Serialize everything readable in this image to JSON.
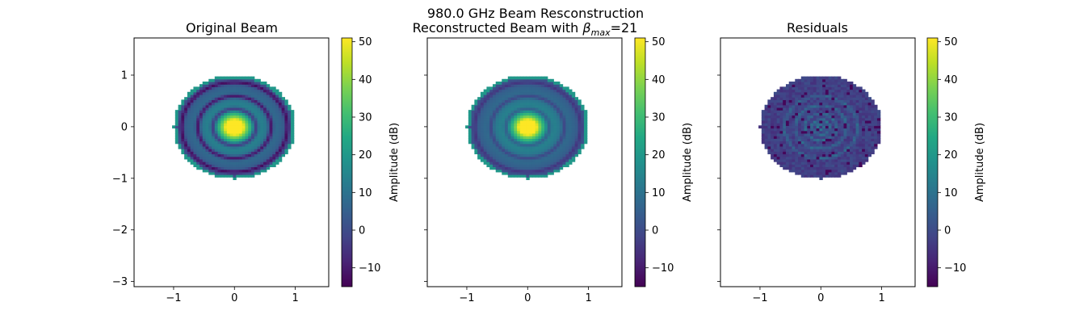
{
  "suptitle": "980.0 GHz Beam Resconstruction",
  "chart_data": [
    {
      "type": "heatmap",
      "title": "Original Beam",
      "xlabel": "",
      "ylabel": "",
      "xlim": [
        -1.65,
        1.55
      ],
      "ylim": [
        -3.1,
        1.72
      ],
      "x_ticks": [
        -1,
        0,
        1
      ],
      "y_ticks": [
        1,
        0,
        -1,
        -2,
        -3
      ],
      "beam": {
        "center": [
          0,
          0
        ],
        "radius": 1.0,
        "grid_step": 0.05
      },
      "pattern": "rings",
      "values_summary": {
        "peak_db": 51,
        "ring_minima_db": [
          8,
          6,
          2
        ],
        "edge_db": 20
      },
      "colorbar": {
        "label": "Amplitude (dB)",
        "vmin": -15,
        "vmax": 51,
        "ticks": [
          50,
          40,
          30,
          20,
          10,
          0,
          -10
        ]
      }
    },
    {
      "type": "heatmap",
      "title": "Reconstructed Beam with ",
      "title_symbol": "β",
      "title_subscript": "max",
      "title_suffix": "=21",
      "xlabel": "",
      "ylabel": "",
      "xlim": [
        -1.65,
        1.55
      ],
      "ylim": [
        -3.1,
        1.72
      ],
      "x_ticks": [
        -1,
        0,
        1
      ],
      "y_ticks": [],
      "beam": {
        "center": [
          0,
          0
        ],
        "radius": 1.0,
        "grid_step": 0.05
      },
      "pattern": "rings-smooth",
      "values_summary": {
        "peak_db": 51,
        "ring_minima_db": [
          12,
          10,
          6
        ],
        "edge_db": 20
      },
      "colorbar": {
        "label": "Amplitude (dB)",
        "vmin": -15,
        "vmax": 51,
        "ticks": [
          50,
          40,
          30,
          20,
          10,
          0,
          -10
        ]
      }
    },
    {
      "type": "heatmap",
      "title": "Residuals",
      "xlabel": "",
      "ylabel": "",
      "xlim": [
        -1.65,
        1.55
      ],
      "ylim": [
        -3.1,
        1.72
      ],
      "x_ticks": [
        -1,
        0,
        1
      ],
      "y_ticks": [],
      "beam": {
        "center": [
          0,
          0
        ],
        "radius": 1.0,
        "grid_step": 0.05
      },
      "pattern": "residual",
      "values_summary": {
        "typical_db": -5,
        "ring_peaks_db": [
          12,
          15
        ],
        "max_db": 18
      },
      "colorbar": {
        "label": "Amplitude (dB)",
        "vmin": -15,
        "vmax": 51,
        "ticks": [
          50,
          40,
          30,
          20,
          10,
          0,
          -10
        ]
      }
    }
  ]
}
